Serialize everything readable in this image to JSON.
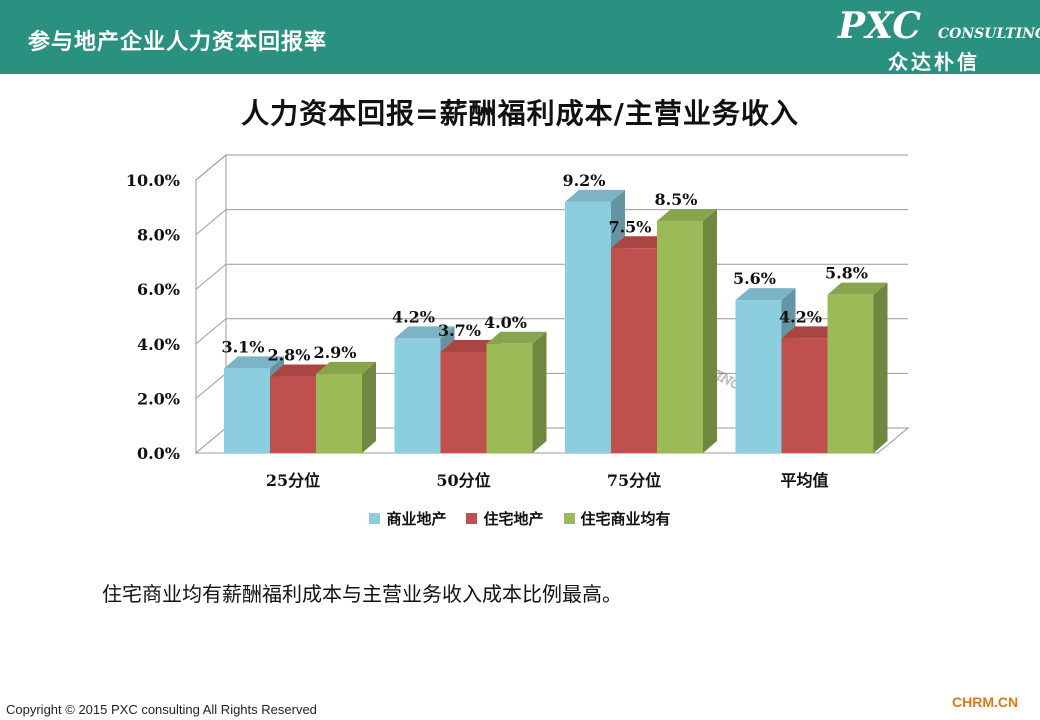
{
  "header": {
    "title": "参与地产企业人力资本回报率",
    "logo_main": "PXC",
    "logo_sub": "CONSULTING",
    "logo_cn": "众达朴信"
  },
  "note": "住宅商业均有薪酬福利成本与主营业务收入成本比例最高。",
  "footer": {
    "copyright": "Copyright © 2015  PXC consulting All Rights Reserved",
    "site": "CHRM.CN"
  },
  "chart_data": {
    "type": "bar",
    "title": "人力资本回报=薪酬福利成本/主营业务收入",
    "categories": [
      "25分位",
      "50分位",
      "75分位",
      "平均值"
    ],
    "series": [
      {
        "name": "商业地产",
        "values": [
          3.1,
          4.2,
          9.2,
          5.6
        ],
        "labels": [
          "3.1%",
          "4.2%",
          "9.2%",
          "5.6%"
        ],
        "color": "#8dcde0"
      },
      {
        "name": "住宅地产",
        "values": [
          2.8,
          3.7,
          7.5,
          4.2
        ],
        "labels": [
          "2.8%",
          "3.7%",
          "7.5%",
          "4.2%"
        ],
        "color": "#c0504d"
      },
      {
        "name": "住宅商业均有",
        "values": [
          2.9,
          4.0,
          8.5,
          5.8
        ],
        "labels": [
          "2.9%",
          "4.0%",
          "8.5%",
          "5.8%"
        ],
        "color": "#9bbb59"
      }
    ],
    "yticks": [
      "0.0%",
      "2.0%",
      "4.0%",
      "6.0%",
      "8.0%",
      "10.0%"
    ],
    "ylim": [
      0,
      10
    ],
    "ytick_step": 2,
    "grid": true,
    "three_d": true,
    "legend_position": "bottom",
    "watermark": {
      "main": "PXC",
      "sub": "CONSULTING",
      "cn": "众达朴信"
    }
  }
}
